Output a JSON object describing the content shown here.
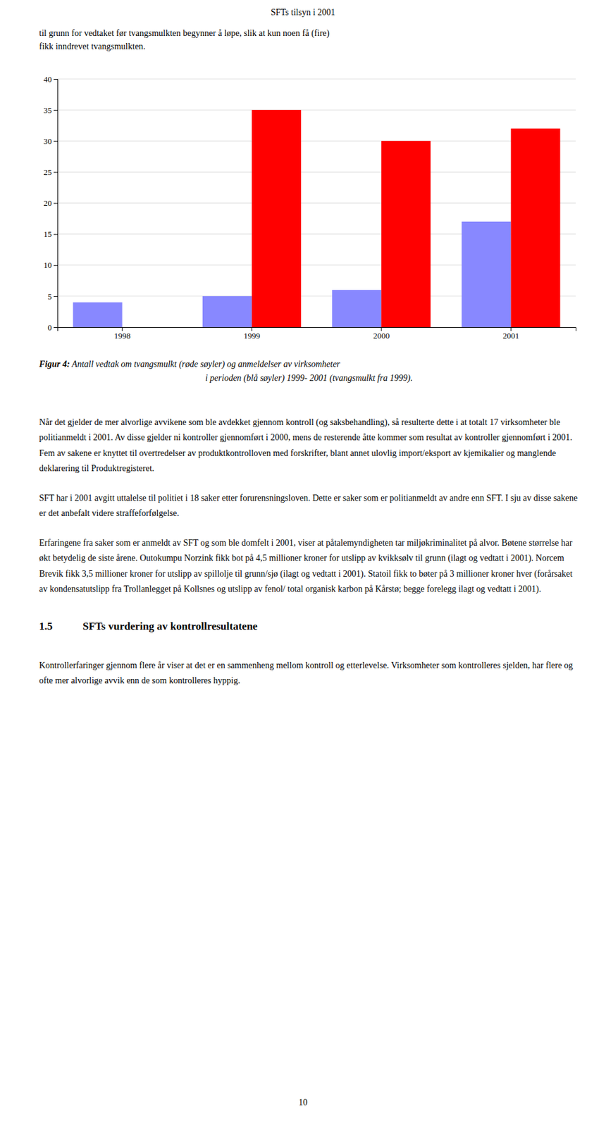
{
  "page_title": "SFTs tilsyn i 2001",
  "intro_text": "til grunn for vedtaket før tvangsmulkten begynner å løpe, slik at kun noen få (fire)\nfikk inndrevet tvangsmulkten.",
  "chart_data": {
    "type": "bar",
    "categories": [
      1998,
      1999,
      2000,
      2001
    ],
    "series": [
      {
        "color": "#8888ff",
        "values": [
          4,
          5,
          6,
          17
        ]
      },
      {
        "color": "#ff0000",
        "values": [
          0,
          35,
          30,
          32
        ]
      }
    ],
    "ylim": [
      0,
      40
    ],
    "yticks": [
      0,
      5,
      10,
      15,
      20,
      25,
      30,
      35,
      40
    ],
    "grid": true
  },
  "caption_bold": "Figur 4:",
  "caption_italic": " Antall vedtak om tvangsmulkt (røde søyler) og anmeldelser av virksomheter",
  "caption_italic2": "i perioden (blå søyler) 1999- 2001 (tvangsmulkt fra 1999).",
  "body_paragraphs": [
    "Når det gjelder de mer alvorlige avvikene som ble avdekket gjennom kontroll (og saksbehandling), så resulterte dette i at totalt 17 virksomheter ble politianmeldt i 2001. Av disse gjelder ni kontroller gjennomført i 2000, mens de resterende åtte kommer som resultat av kontroller gjennomført i 2001. Fem av sakene er knyttet til overtredelser av produktkontrolloven med forskrifter, blant annet ulovlig import/eksport av kjemikalier og manglende deklarering til Produktregisteret.",
    "SFT har i 2001 avgitt uttalelse til politiet i 18 saker etter forurensningsloven. Dette er saker som er politianmeldt av andre enn SFT. I sju av disse sakene er det anbefalt videre straffeforfølgelse.",
    "Erfaringene fra saker som er anmeldt av SFT og som ble domfelt i 2001, viser at påtalemyndigheten tar miljøkriminalitet på alvor. Bøtene størrelse har økt betydelig de siste årene. Outokumpu Norzink fikk bot på 4,5 millioner kroner for utslipp av kvikksølv til grunn (ilagt og vedtatt i 2001). Norcem Brevik fikk 3,5 millioner kroner for utslipp av spillolje til grunn/sjø (ilagt og vedtatt i 2001). Statoil fikk to bøter på 3 millioner kroner hver (forårsaket av kondensatutslipp fra Trollanlegget på Kollsnes og utslipp av fenol/ total organisk karbon på Kårstø; begge forelegg ilagt og vedtatt i 2001)."
  ],
  "section_number": "1.5",
  "section_heading": "SFTs vurdering av kontrollresultatene",
  "section_body": "Kontrollerfaringer gjennom flere år viser at det er en sammenheng mellom kontroll og etterlevelse. Virksomheter som kontrolleres sjelden, har flere og ofte mer alvorlige avvik enn de som kontrolleres hyppig.",
  "page_number": "10"
}
